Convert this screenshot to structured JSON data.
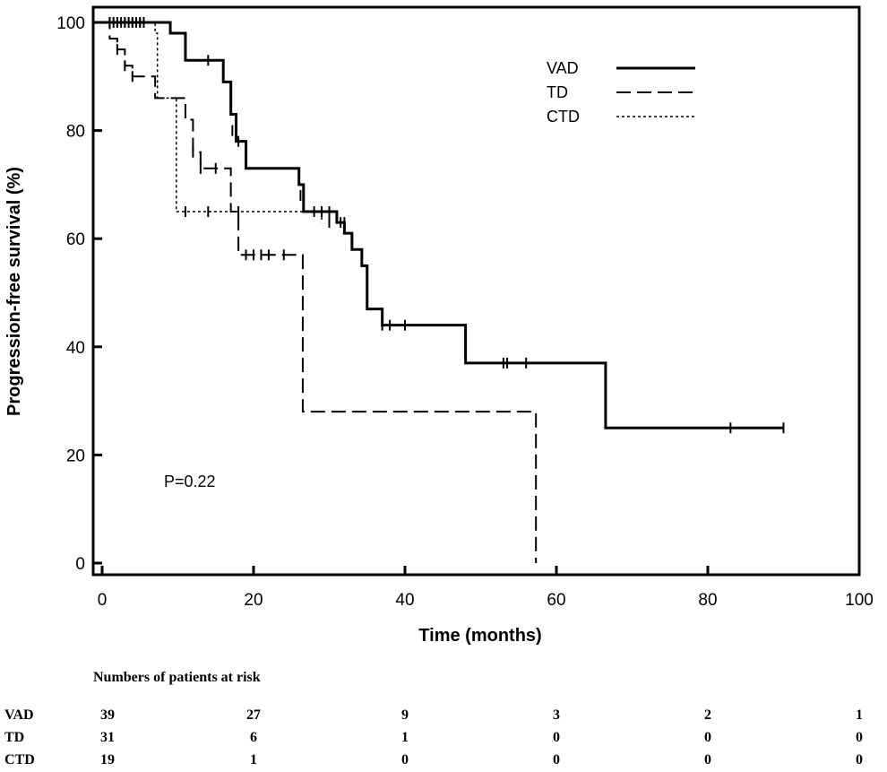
{
  "chart_data": {
    "type": "line",
    "xlabel": "Time (months)",
    "ylabel": "Progression-free survival (%)",
    "xlim": [
      0,
      100
    ],
    "ylim": [
      0,
      100
    ],
    "x_ticks": [
      0,
      20,
      40,
      60,
      80,
      100
    ],
    "y_ticks": [
      0,
      20,
      40,
      60,
      80,
      100
    ],
    "grid": false,
    "legend_position": "top-right",
    "annotation": "P=0.22",
    "series": [
      {
        "name": "VAD",
        "style": "solid",
        "steps": [
          [
            0,
            100
          ],
          [
            9,
            98
          ],
          [
            11,
            93
          ],
          [
            16,
            89
          ],
          [
            17,
            83
          ],
          [
            17.7,
            78
          ],
          [
            19,
            73
          ],
          [
            26,
            70
          ],
          [
            26.6,
            65
          ],
          [
            31,
            63
          ],
          [
            32,
            61
          ],
          [
            33,
            58
          ],
          [
            34.3,
            55
          ],
          [
            35,
            47
          ],
          [
            37,
            44
          ],
          [
            48,
            37
          ],
          [
            66.5,
            25
          ],
          [
            90,
            25
          ]
        ],
        "censored": [
          [
            1,
            100
          ],
          [
            1.5,
            100
          ],
          [
            2,
            100
          ],
          [
            2.5,
            100
          ],
          [
            3,
            100
          ],
          [
            3.5,
            100
          ],
          [
            4,
            100
          ],
          [
            4.5,
            100
          ],
          [
            5,
            100
          ],
          [
            5.5,
            100
          ],
          [
            14,
            93
          ],
          [
            17.2,
            80
          ],
          [
            18,
            78
          ],
          [
            26.2,
            68
          ],
          [
            28,
            65
          ],
          [
            29,
            65
          ],
          [
            30,
            65
          ],
          [
            31.5,
            63
          ],
          [
            37,
            44
          ],
          [
            38,
            44
          ],
          [
            40,
            44
          ],
          [
            53,
            37
          ],
          [
            53.5,
            37
          ],
          [
            56,
            37
          ],
          [
            83,
            25
          ],
          [
            90,
            25
          ]
        ]
      },
      {
        "name": "TD",
        "style": "dashed",
        "steps": [
          [
            0,
            100
          ],
          [
            1,
            97
          ],
          [
            2,
            95
          ],
          [
            3,
            92
          ],
          [
            4,
            90
          ],
          [
            7,
            86
          ],
          [
            11,
            82
          ],
          [
            12,
            76
          ],
          [
            13,
            73
          ],
          [
            17,
            65
          ],
          [
            18,
            57
          ],
          [
            26,
            57
          ],
          [
            26.5,
            28
          ],
          [
            57,
            28
          ],
          [
            57.3,
            0
          ]
        ],
        "censored": [
          [
            2,
            95
          ],
          [
            3,
            92
          ],
          [
            4,
            90
          ],
          [
            12,
            76
          ],
          [
            13,
            73
          ],
          [
            15,
            73
          ],
          [
            19,
            57
          ],
          [
            20,
            57
          ],
          [
            21,
            57
          ],
          [
            22,
            57
          ],
          [
            24,
            57
          ]
        ]
      },
      {
        "name": "CTD",
        "style": "dotted",
        "steps": [
          [
            0,
            100
          ],
          [
            7,
            98
          ],
          [
            7.3,
            86
          ],
          [
            9.5,
            86
          ],
          [
            9.8,
            65
          ],
          [
            27,
            65
          ],
          [
            29,
            63
          ]
        ],
        "censored": [
          [
            1,
            100
          ],
          [
            2,
            100
          ],
          [
            3,
            100
          ],
          [
            4,
            100
          ],
          [
            5,
            100
          ],
          [
            11,
            65
          ],
          [
            14,
            65
          ],
          [
            18,
            65
          ],
          [
            30,
            63
          ],
          [
            32,
            63
          ]
        ]
      }
    ]
  },
  "risk_table": {
    "title": "Numbers of patients at risk",
    "timepoints": [
      0,
      20,
      40,
      60,
      80,
      100
    ],
    "rows": [
      {
        "label": "VAD",
        "values": [
          "39",
          "27",
          "9",
          "3",
          "2",
          "1"
        ]
      },
      {
        "label": "TD",
        "values": [
          "31",
          "6",
          "1",
          "0",
          "0",
          "0"
        ]
      },
      {
        "label": "CTD",
        "values": [
          "19",
          "1",
          "0",
          "0",
          "0",
          "0"
        ]
      }
    ]
  },
  "colors": {
    "line": "#000000",
    "background": "#ffffff"
  }
}
